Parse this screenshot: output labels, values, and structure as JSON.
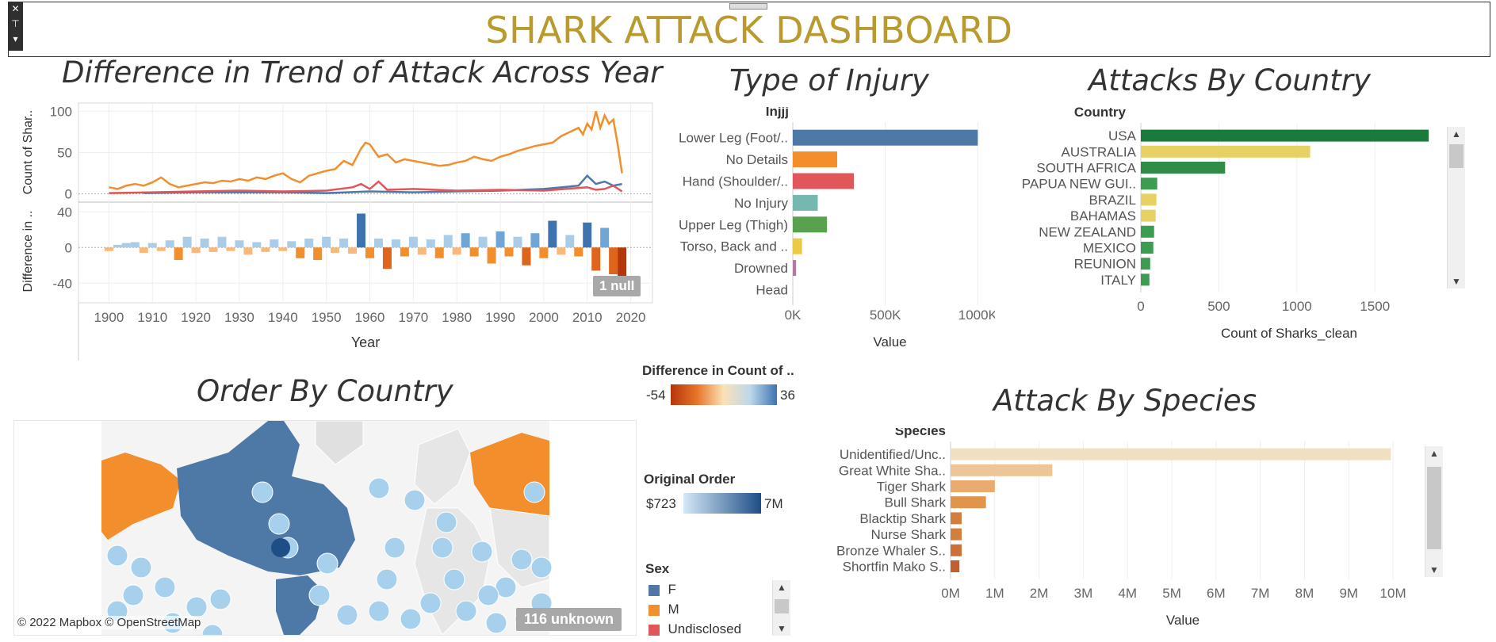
{
  "dashboard": {
    "title": "SHARK ATTACK DASHBOARD"
  },
  "toolbar": {
    "close_icon": "close-icon",
    "pin_icon": "pin-icon",
    "menu_icon": "chevron-down-icon"
  },
  "colors": {
    "title": "#b89a2e",
    "female": "#4e79a7",
    "male": "#f28e2b",
    "undisclosed": "#e15759",
    "diverge_neg": "#c0420c",
    "diverge_pos": "#3d74b0",
    "map_land": "#dcdcdc"
  },
  "trend": {
    "title": "Difference in Trend of Attack Across Year",
    "top_ylabel": "Count of Shar..",
    "bottom_ylabel": "Difference in ..",
    "xlabel": "Year",
    "null_badge": "1 null"
  },
  "injury": {
    "title": "Type of Injury",
    "header": "Injjj",
    "xlabel": "Value"
  },
  "country": {
    "title": "Attacks By Country",
    "header": "Country",
    "xlabel": "Count of Sharks_clean"
  },
  "species": {
    "title": "Attack By Species",
    "header": "Species",
    "xlabel": "Value"
  },
  "map": {
    "title": "Order By Country",
    "credit": "© 2022 Mapbox © OpenStreetMap",
    "unknown_badge": "116 unknown"
  },
  "legends": {
    "difference": {
      "title": "Difference in Count of ..",
      "min": "-54",
      "max": "36"
    },
    "original_order": {
      "title": "Original Order",
      "min": "$723",
      "max": "7M"
    },
    "sex": {
      "title": "Sex",
      "items": [
        "F",
        "M",
        "Undisclosed"
      ]
    }
  },
  "chart_data": [
    {
      "type": "line",
      "id": "trend-top",
      "title": "Difference in Trend of Attack Across Year",
      "ylabel": "Count of Shar..",
      "xlim": [
        1893,
        2025
      ],
      "ylim": [
        -8,
        110
      ],
      "yticks": [
        0,
        50,
        100
      ],
      "xticks": [
        1900,
        1910,
        1920,
        1930,
        1940,
        1950,
        1960,
        1970,
        1980,
        1990,
        2000,
        2010,
        2020
      ],
      "series": [
        {
          "name": "M",
          "x": [
            1900,
            1902,
            1904,
            1906,
            1908,
            1910,
            1912,
            1914,
            1916,
            1918,
            1920,
            1922,
            1924,
            1926,
            1928,
            1930,
            1932,
            1934,
            1936,
            1938,
            1940,
            1942,
            1944,
            1946,
            1948,
            1950,
            1952,
            1954,
            1956,
            1958,
            1959,
            1960,
            1962,
            1964,
            1966,
            1968,
            1970,
            1972,
            1974,
            1976,
            1978,
            1980,
            1982,
            1984,
            1986,
            1988,
            1990,
            1992,
            1994,
            1996,
            1998,
            2000,
            2002,
            2004,
            2006,
            2008,
            2009,
            2010,
            2011,
            2012,
            2013,
            2014,
            2015,
            2016,
            2017,
            2018
          ],
          "values": [
            8,
            6,
            10,
            12,
            10,
            14,
            20,
            12,
            8,
            10,
            12,
            14,
            13,
            16,
            15,
            18,
            16,
            20,
            18,
            22,
            25,
            18,
            14,
            22,
            25,
            28,
            30,
            40,
            35,
            55,
            62,
            60,
            45,
            48,
            38,
            42,
            40,
            38,
            36,
            34,
            35,
            38,
            40,
            45,
            42,
            40,
            45,
            48,
            52,
            55,
            58,
            60,
            62,
            70,
            75,
            80,
            72,
            85,
            78,
            100,
            80,
            95,
            85,
            90,
            60,
            25
          ]
        },
        {
          "name": "F",
          "x": [
            1908,
            1920,
            1940,
            1950,
            1960,
            1970,
            1980,
            1990,
            2000,
            2004,
            2008,
            2010,
            2012,
            2014,
            2016,
            2018
          ],
          "values": [
            1,
            2,
            2,
            1,
            3,
            2,
            3,
            4,
            6,
            8,
            10,
            22,
            12,
            15,
            10,
            12
          ]
        },
        {
          "name": "Undisclosed",
          "x": [
            1900,
            1910,
            1920,
            1930,
            1940,
            1950,
            1956,
            1958,
            1960,
            1962,
            1964,
            1970,
            1980,
            1990,
            2000,
            2005,
            2010,
            2012,
            2014,
            2016,
            2018
          ],
          "values": [
            1,
            2,
            3,
            4,
            3,
            4,
            8,
            12,
            6,
            15,
            5,
            6,
            4,
            5,
            4,
            6,
            8,
            5,
            6,
            10,
            3
          ]
        }
      ]
    },
    {
      "type": "bar",
      "id": "trend-bottom",
      "ylabel": "Difference in ..",
      "xlabel": "Year",
      "ylim": [
        -62,
        50
      ],
      "yticks": [
        -40,
        0,
        40
      ],
      "series": [
        {
          "name": "Difference",
          "x": [
            1900,
            1902,
            1904,
            1906,
            1908,
            1910,
            1912,
            1914,
            1916,
            1918,
            1920,
            1922,
            1924,
            1926,
            1928,
            1930,
            1932,
            1934,
            1936,
            1938,
            1940,
            1942,
            1944,
            1946,
            1948,
            1950,
            1952,
            1954,
            1956,
            1958,
            1960,
            1962,
            1964,
            1966,
            1968,
            1970,
            1972,
            1974,
            1976,
            1978,
            1980,
            1982,
            1984,
            1986,
            1988,
            1990,
            1992,
            1994,
            1996,
            1998,
            2000,
            2002,
            2004,
            2006,
            2008,
            2010,
            2012,
            2014,
            2016,
            2018
          ],
          "values": [
            -4,
            3,
            5,
            6,
            -6,
            5,
            -4,
            8,
            -14,
            12,
            -6,
            10,
            -5,
            12,
            -4,
            8,
            -8,
            6,
            -5,
            9,
            -4,
            7,
            -12,
            10,
            -14,
            12,
            -6,
            10,
            -7,
            38,
            -12,
            10,
            -24,
            9,
            -10,
            12,
            -8,
            9,
            -12,
            14,
            -8,
            16,
            -10,
            12,
            -18,
            18,
            -10,
            12,
            -20,
            16,
            -12,
            30,
            -8,
            14,
            -10,
            28,
            -26,
            22,
            -30,
            -54
          ]
        }
      ]
    },
    {
      "type": "bar",
      "id": "injury",
      "title": "Type of Injury",
      "xlabel": "Value",
      "categories": [
        "Lower Leg (Foot/..",
        "No Details",
        "Hand (Shoulder/..",
        "No Injury",
        "Upper Leg (Thigh)",
        "Torso, Back and ..",
        "Drowned",
        "Head"
      ],
      "values": [
        1000000,
        240000,
        330000,
        135000,
        185000,
        50000,
        18000,
        0
      ],
      "colors": [
        "#4e79a7",
        "#f28e2b",
        "#e15759",
        "#76b7b2",
        "#59a14f",
        "#edc948",
        "#b07aa1",
        "#9c9c9c"
      ],
      "xlim": [
        0,
        1050000
      ],
      "xticks": [
        0,
        500000,
        1000000
      ],
      "xticklabels": [
        "0K",
        "500K",
        "1000K"
      ]
    },
    {
      "type": "bar",
      "id": "country",
      "title": "Attacks By Country",
      "xlabel": "Count of Sharks_clean",
      "categories": [
        "USA",
        "AUSTRALIA",
        "SOUTH AFRICA",
        "PAPUA NEW GUI..",
        "BRAZIL",
        "BAHAMAS",
        "NEW ZEALAND",
        "MEXICO",
        "REUNION",
        "ITALY"
      ],
      "values": [
        1845,
        1085,
        540,
        105,
        100,
        95,
        85,
        80,
        60,
        55
      ],
      "colors": [
        "#1a7a3c",
        "#e8d163",
        "#2f8d46",
        "#3c9c50",
        "#e8d163",
        "#e8d163",
        "#3c9c50",
        "#3c9c50",
        "#3c9c50",
        "#3c9c50"
      ],
      "xlim": [
        0,
        1900
      ],
      "xticks": [
        0,
        500,
        1000,
        1500
      ]
    },
    {
      "type": "bar",
      "id": "species",
      "title": "Attack By Species",
      "xlabel": "Value",
      "categories": [
        "Unidentified/Unc..",
        "Great White Sha..",
        "Tiger Shark",
        "Bull Shark",
        "Blacktip Shark",
        "Nurse Shark",
        "Bronze Whaler S..",
        "Shortfin Mako S.."
      ],
      "values": [
        9950000,
        2300000,
        1000000,
        800000,
        250000,
        250000,
        250000,
        200000
      ],
      "colors": [
        "#f0dfc0",
        "#eec598",
        "#e9ab6e",
        "#e0944c",
        "#d47e3e",
        "#d47e3e",
        "#ce6f36",
        "#c35f2e"
      ],
      "xlim": [
        0,
        10500000
      ],
      "xticks": [
        0,
        1000000,
        2000000,
        3000000,
        4000000,
        5000000,
        6000000,
        7000000,
        8000000,
        9000000,
        10000000
      ],
      "xticklabels": [
        "0M",
        "1M",
        "2M",
        "3M",
        "4M",
        "5M",
        "6M",
        "7M",
        "8M",
        "9M",
        "10M"
      ]
    }
  ]
}
